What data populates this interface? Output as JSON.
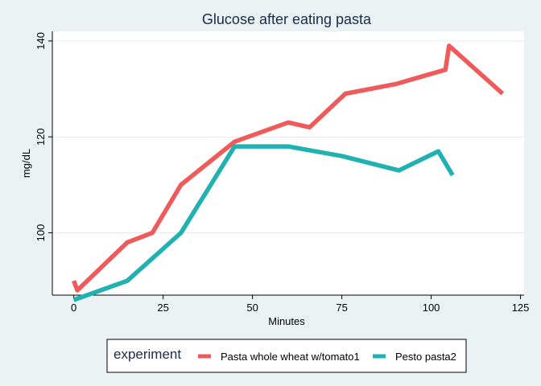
{
  "chart_data": {
    "type": "line",
    "title": "Glucose after eating pasta",
    "xlabel": "Minutes",
    "ylabel": "mg/dL",
    "xlim": [
      -6,
      126
    ],
    "ylim": [
      87,
      142
    ],
    "xticks": [
      0,
      25,
      50,
      75,
      100,
      125
    ],
    "yticks": [
      100,
      120,
      140
    ],
    "grid": true,
    "legend_title": "experiment",
    "legend_position": "bottom",
    "series": [
      {
        "name": "Pasta whole wheat w/tomato1",
        "color": "#ef5b5b",
        "x": [
          0,
          1,
          15,
          22,
          30,
          45,
          60,
          66,
          76,
          90,
          104,
          105,
          120
        ],
        "y": [
          90,
          88,
          98,
          100,
          110,
          119,
          123,
          122,
          129,
          131,
          134,
          139,
          129
        ]
      },
      {
        "name": "Pesto pasta2",
        "color": "#1fb2b0",
        "x": [
          0,
          15,
          30,
          45,
          60,
          75,
          91,
          102,
          106
        ],
        "y": [
          86,
          90,
          100,
          118,
          118,
          116,
          113,
          117,
          112
        ]
      }
    ]
  }
}
